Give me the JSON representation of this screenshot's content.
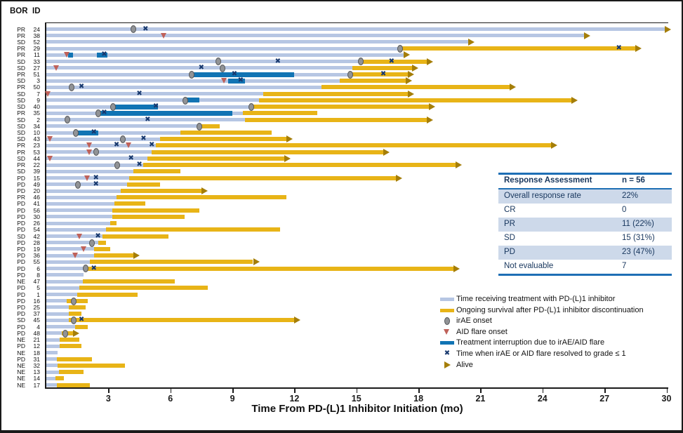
{
  "header": {
    "bor": "BOR",
    "id": "ID"
  },
  "axis": {
    "title": "Time From PD-(L)1 Inhibitor Initiation (mo)",
    "ticks": [
      3,
      6,
      9,
      12,
      15,
      18,
      21,
      24,
      27,
      30
    ],
    "min": 0,
    "max": 30.5
  },
  "colors": {
    "treatment_bar": "#b6c6e3",
    "survival_bar": "#e8b417",
    "interruption_bar": "#1174b4",
    "irae_marker": "#919396",
    "flare_marker": "#bf6159",
    "resolved_marker": "#17386e",
    "alive_marker": "#a57e08",
    "table_border": "#1e6fb5",
    "table_shade": "#cdd9ea",
    "table_text": "#17365d"
  },
  "legend": {
    "items": [
      {
        "type": "bar-blue",
        "label": "Time receiving treatment with PD-(L)1 inhibitor"
      },
      {
        "type": "bar-yellow",
        "label": "Ongoing survival after PD-(L)1 inhibitor discontinuation"
      },
      {
        "type": "circle",
        "label": "irAE onset"
      },
      {
        "type": "triangle",
        "label": "AID flare onset"
      },
      {
        "type": "bar-dark",
        "label": "Treatment interruption due to irAE/AID flare"
      },
      {
        "type": "x",
        "label": "Time when irAE or AID flare resolved to grade ≤ 1"
      },
      {
        "type": "arrow",
        "label": "Alive"
      }
    ]
  },
  "table": {
    "header": [
      "Response Assessment",
      "n = 56"
    ],
    "rows": [
      [
        "Overall response rate",
        "22%"
      ],
      [
        "CR",
        "0"
      ],
      [
        "PR",
        "11 (22%)"
      ],
      [
        "SD",
        "15 (31%)"
      ],
      [
        "PD",
        "23 (47%)"
      ],
      [
        "Not evaluable",
        "7"
      ]
    ],
    "shaded_row_indexes": [
      0,
      2,
      4
    ]
  },
  "chart_data": {
    "type": "swimmer",
    "x_unit": "months",
    "xlabel": "Time From PD-(L)1 Inhibitor Initiation (mo)",
    "xlim": [
      0,
      30.5
    ],
    "patients": [
      {
        "bor": "PR",
        "id": "24",
        "treat": 29.9,
        "surv": null,
        "alive": true,
        "intr": [],
        "irae": [
          4.2
        ],
        "flare": [],
        "resolved": [
          4.8
        ]
      },
      {
        "bor": "PR",
        "id": "38",
        "treat": 26.0,
        "surv": null,
        "alive": true,
        "intr": [],
        "irae": [],
        "flare": [
          5.7
        ],
        "resolved": []
      },
      {
        "bor": "SD",
        "id": "52",
        "treat": 20.4,
        "surv": null,
        "alive": true,
        "intr": [],
        "irae": [],
        "flare": [],
        "resolved": []
      },
      {
        "bor": "PR",
        "id": "29",
        "treat": 17.1,
        "surv": 28.5,
        "alive": true,
        "intr": [],
        "irae": [
          17.1
        ],
        "flare": [],
        "resolved": [
          27.7
        ]
      },
      {
        "bor": "PR",
        "id": "11",
        "treat": 17.3,
        "surv": null,
        "alive": true,
        "intr": [
          [
            1.05,
            1.3
          ],
          [
            2.45,
            2.95
          ]
        ],
        "irae": [],
        "flare": [
          1.0
        ],
        "resolved": [
          2.8
        ]
      },
      {
        "bor": "SD",
        "id": "33",
        "treat": 15.2,
        "surv": 18.4,
        "alive": true,
        "intr": [],
        "irae": [
          8.3,
          15.2
        ],
        "flare": [],
        "resolved": [
          11.2,
          16.7
        ]
      },
      {
        "bor": "SD",
        "id": "27",
        "treat": 14.8,
        "surv": 17.7,
        "alive": true,
        "intr": [],
        "irae": [
          8.5
        ],
        "flare": [
          0.5
        ],
        "resolved": [
          7.5
        ]
      },
      {
        "bor": "PR",
        "id": "51",
        "treat": 14.7,
        "surv": 17.5,
        "alive": true,
        "intr": [
          [
            7.0,
            12.0
          ]
        ],
        "irae": [
          7.0,
          14.7
        ],
        "flare": [],
        "resolved": [
          9.1,
          16.3
        ]
      },
      {
        "bor": "SD",
        "id": "3",
        "treat": 14.2,
        "surv": 17.4,
        "alive": true,
        "intr": [
          [
            8.8,
            9.6
          ]
        ],
        "irae": [],
        "flare": [
          8.6
        ],
        "resolved": [
          9.4
        ]
      },
      {
        "bor": "PR",
        "id": "50",
        "treat": 13.3,
        "surv": 22.4,
        "alive": true,
        "intr": [],
        "irae": [
          1.2
        ],
        "flare": [],
        "resolved": [
          1.7
        ]
      },
      {
        "bor": "SD",
        "id": "7",
        "treat": 10.5,
        "surv": 17.5,
        "alive": true,
        "intr": [],
        "irae": [],
        "flare": [
          0.1
        ],
        "resolved": [
          4.5
        ]
      },
      {
        "bor": "SD",
        "id": "9",
        "treat": 10.3,
        "surv": 25.4,
        "alive": true,
        "intr": [
          [
            6.7,
            7.4
          ]
        ],
        "irae": [
          6.7
        ],
        "flare": [],
        "resolved": []
      },
      {
        "bor": "SD",
        "id": "40",
        "treat": 10.0,
        "surv": 18.5,
        "alive": true,
        "intr": [
          [
            3.2,
            5.4
          ]
        ],
        "irae": [
          3.2,
          9.9
        ],
        "flare": [],
        "resolved": [
          5.3
        ]
      },
      {
        "bor": "PR",
        "id": "35",
        "treat": 9.5,
        "surv": 13.1,
        "alive": false,
        "intr": [
          [
            2.6,
            9.0
          ]
        ],
        "irae": [
          2.5
        ],
        "flare": [],
        "resolved": [
          2.8
        ]
      },
      {
        "bor": "SD",
        "id": "2",
        "treat": 9.6,
        "surv": 18.4,
        "alive": true,
        "intr": [],
        "irae": [
          1.0
        ],
        "flare": [],
        "resolved": [
          4.9
        ]
      },
      {
        "bor": "SD",
        "id": "34",
        "treat": 7.4,
        "surv": 8.4,
        "alive": false,
        "intr": [],
        "irae": [
          7.4
        ],
        "flare": [],
        "resolved": []
      },
      {
        "bor": "SD",
        "id": "10",
        "treat": 6.5,
        "surv": 10.9,
        "alive": false,
        "intr": [
          [
            1.4,
            2.5
          ]
        ],
        "irae": [
          1.4
        ],
        "flare": [],
        "resolved": [
          2.3
        ]
      },
      {
        "bor": "SD",
        "id": "43",
        "treat": 5.5,
        "surv": 11.6,
        "alive": true,
        "intr": [],
        "irae": [
          3.7
        ],
        "flare": [
          0.2
        ],
        "resolved": [
          4.7
        ]
      },
      {
        "bor": "PR",
        "id": "23",
        "treat": 5.3,
        "surv": 24.4,
        "alive": true,
        "intr": [],
        "irae": [],
        "flare": [
          2.1,
          4.0
        ],
        "resolved": [
          3.4,
          5.1
        ]
      },
      {
        "bor": "PR",
        "id": "53",
        "treat": 5.1,
        "surv": 16.3,
        "alive": true,
        "intr": [],
        "irae": [
          2.4
        ],
        "flare": [
          2.1
        ],
        "resolved": []
      },
      {
        "bor": "SD",
        "id": "44",
        "treat": 4.9,
        "surv": 11.5,
        "alive": true,
        "intr": [],
        "irae": [],
        "flare": [
          0.2
        ],
        "resolved": [
          4.1
        ]
      },
      {
        "bor": "PR",
        "id": "22",
        "treat": 4.7,
        "surv": 19.8,
        "alive": true,
        "intr": [],
        "irae": [
          3.4
        ],
        "flare": [],
        "resolved": [
          4.5
        ]
      },
      {
        "bor": "SD",
        "id": "39",
        "treat": 4.2,
        "surv": 6.5,
        "alive": false,
        "intr": [],
        "irae": [],
        "flare": [],
        "resolved": []
      },
      {
        "bor": "PD",
        "id": "15",
        "treat": 4.0,
        "surv": 16.9,
        "alive": true,
        "intr": [],
        "irae": [],
        "flare": [
          2.0
        ],
        "resolved": [
          2.4
        ]
      },
      {
        "bor": "PD",
        "id": "49",
        "treat": 3.9,
        "surv": 5.5,
        "alive": false,
        "intr": [],
        "irae": [
          1.5
        ],
        "flare": [],
        "resolved": [
          2.4
        ]
      },
      {
        "bor": "PD",
        "id": "20",
        "treat": 3.6,
        "surv": 7.5,
        "alive": true,
        "intr": [],
        "irae": [],
        "flare": [],
        "resolved": []
      },
      {
        "bor": "PR",
        "id": "46",
        "treat": 3.4,
        "surv": 11.6,
        "alive": false,
        "intr": [],
        "irae": [],
        "flare": [],
        "resolved": []
      },
      {
        "bor": "PD",
        "id": "41",
        "treat": 3.3,
        "surv": 4.8,
        "alive": false,
        "intr": [],
        "irae": [],
        "flare": [],
        "resolved": []
      },
      {
        "bor": "PD",
        "id": "56",
        "treat": 3.2,
        "surv": 7.4,
        "alive": false,
        "intr": [],
        "irae": [],
        "flare": [],
        "resolved": []
      },
      {
        "bor": "PD",
        "id": "30",
        "treat": 3.2,
        "surv": 6.7,
        "alive": false,
        "intr": [],
        "irae": [],
        "flare": [],
        "resolved": []
      },
      {
        "bor": "PD",
        "id": "26",
        "treat": 3.1,
        "surv": 3.4,
        "alive": false,
        "intr": [],
        "irae": [],
        "flare": [],
        "resolved": []
      },
      {
        "bor": "PD",
        "id": "54",
        "treat": 2.9,
        "surv": 11.3,
        "alive": false,
        "intr": [],
        "irae": [],
        "flare": [],
        "resolved": []
      },
      {
        "bor": "SD",
        "id": "42",
        "treat": 2.7,
        "surv": 5.9,
        "alive": false,
        "intr": [],
        "irae": [],
        "flare": [
          1.6
        ],
        "resolved": [
          2.5
        ]
      },
      {
        "bor": "PD",
        "id": "28",
        "treat": 2.5,
        "surv": 2.9,
        "alive": false,
        "intr": [],
        "irae": [
          2.2
        ],
        "flare": [],
        "resolved": []
      },
      {
        "bor": "PD",
        "id": "19",
        "treat": 2.3,
        "surv": 3.1,
        "alive": false,
        "intr": [],
        "irae": [],
        "flare": [
          1.8
        ],
        "resolved": []
      },
      {
        "bor": "PD",
        "id": "36",
        "treat": 2.3,
        "surv": 4.2,
        "alive": true,
        "intr": [],
        "irae": [],
        "flare": [
          1.4
        ],
        "resolved": []
      },
      {
        "bor": "PD",
        "id": "55",
        "treat": 2.1,
        "surv": 10.0,
        "alive": true,
        "intr": [],
        "irae": [],
        "flare": [],
        "resolved": []
      },
      {
        "bor": "PD",
        "id": "6",
        "treat": 1.9,
        "surv": 19.7,
        "alive": true,
        "intr": [],
        "irae": [
          1.9
        ],
        "flare": [],
        "resolved": [
          2.3
        ]
      },
      {
        "bor": "PD",
        "id": "8",
        "treat": 1.8,
        "surv": null,
        "alive": false,
        "intr": [],
        "irae": [],
        "flare": [],
        "resolved": []
      },
      {
        "bor": "NE",
        "id": "47",
        "treat": 1.75,
        "surv": 6.2,
        "alive": false,
        "intr": [],
        "irae": [],
        "flare": [],
        "resolved": []
      },
      {
        "bor": "PD",
        "id": "5",
        "treat": 1.6,
        "surv": 7.8,
        "alive": false,
        "intr": [],
        "irae": [],
        "flare": [],
        "resolved": []
      },
      {
        "bor": "PD",
        "id": "1",
        "treat": 1.5,
        "surv": 4.4,
        "alive": false,
        "intr": [],
        "irae": [],
        "flare": [],
        "resolved": []
      },
      {
        "bor": "PD",
        "id": "16",
        "treat": 1.0,
        "surv": 2.0,
        "alive": false,
        "intr": [],
        "irae": [
          1.3
        ],
        "flare": [],
        "resolved": []
      },
      {
        "bor": "PD",
        "id": "25",
        "treat": 1.1,
        "surv": 1.9,
        "alive": false,
        "intr": [],
        "irae": [],
        "flare": [],
        "resolved": []
      },
      {
        "bor": "PD",
        "id": "37",
        "treat": 1.1,
        "surv": 1.7,
        "alive": false,
        "intr": [],
        "irae": [],
        "flare": [],
        "resolved": []
      },
      {
        "bor": "SD",
        "id": "45",
        "treat": 1.1,
        "surv": 12.0,
        "alive": true,
        "intr": [],
        "irae": [
          1.3
        ],
        "flare": [],
        "resolved": [
          1.7
        ]
      },
      {
        "bor": "PD",
        "id": "4",
        "treat": 1.4,
        "surv": 2.0,
        "alive": false,
        "intr": [],
        "irae": [],
        "flare": [],
        "resolved": []
      },
      {
        "bor": "PD",
        "id": "48",
        "treat": 0.75,
        "surv": 1.3,
        "alive": true,
        "intr": [],
        "irae": [
          0.9
        ],
        "flare": [],
        "resolved": []
      },
      {
        "bor": "NE",
        "id": "21",
        "treat": 0.65,
        "surv": 1.6,
        "alive": false,
        "intr": [],
        "irae": [],
        "flare": [],
        "resolved": []
      },
      {
        "bor": "PD",
        "id": "12",
        "treat": 0.65,
        "surv": 1.7,
        "alive": false,
        "intr": [],
        "irae": [],
        "flare": [],
        "resolved": []
      },
      {
        "bor": "NE",
        "id": "18",
        "treat": 0.55,
        "surv": null,
        "alive": false,
        "intr": [],
        "irae": [],
        "flare": [],
        "resolved": []
      },
      {
        "bor": "PD",
        "id": "31",
        "treat": 0.5,
        "surv": 2.2,
        "alive": false,
        "intr": [],
        "irae": [],
        "flare": [],
        "resolved": []
      },
      {
        "bor": "NE",
        "id": "32",
        "treat": 0.55,
        "surv": 3.8,
        "alive": false,
        "intr": [],
        "irae": [],
        "flare": [],
        "resolved": []
      },
      {
        "bor": "NE",
        "id": "13",
        "treat": 0.6,
        "surv": 1.8,
        "alive": false,
        "intr": [],
        "irae": [],
        "flare": [],
        "resolved": []
      },
      {
        "bor": "NE",
        "id": "14",
        "treat": 0.45,
        "surv": 0.85,
        "alive": false,
        "intr": [],
        "irae": [],
        "flare": [],
        "resolved": []
      },
      {
        "bor": "NE",
        "id": "17",
        "treat": 0.5,
        "surv": 2.1,
        "alive": false,
        "intr": [],
        "irae": [],
        "flare": [],
        "resolved": []
      }
    ]
  }
}
